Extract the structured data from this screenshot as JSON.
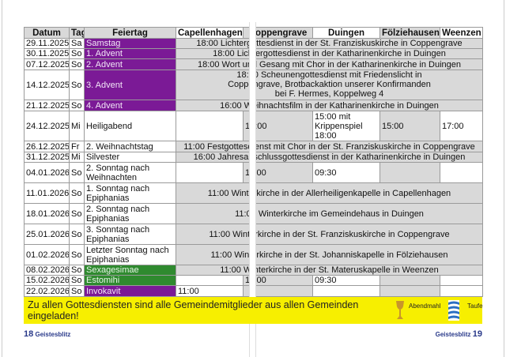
{
  "header": [
    "Datum",
    "Tag",
    "Feiertag",
    "Capellenhagen",
    "Coppengrave",
    "Duingen",
    "Fölziehausen",
    "Weenzen"
  ],
  "rows": [
    {
      "date": "29.11.2025",
      "day": "Sa",
      "feast": "Samstag",
      "feast_color": "purple",
      "merged": "18:00 Lichtergottesdienst in der St. Franziskuskirche in Coppengrave"
    },
    {
      "date": "30.11.2025",
      "day": "So",
      "feast": "1. Advent",
      "feast_color": "purple",
      "merged": "18:00 Lichtergottesdienst in der Katharinenkirche in Duingen"
    },
    {
      "date": "07.12.2025",
      "day": "So",
      "feast": "2. Advent",
      "feast_color": "purple",
      "merged": "18:00 Wort und Gesang mit Chor in der Katharinenkirche in Duingen"
    },
    {
      "date": "14.12.2025",
      "day": "So",
      "feast": "3. Advent",
      "feast_color": "purple",
      "merged": "18:00 Scheunengottesdienst mit Friedenslicht in Coppengrave, Brotbackaktion unserer Konfirmanden bei F. Hermes, Koppelweg 4"
    },
    {
      "date": "21.12.2025",
      "day": "So",
      "feast": "4. Advent",
      "feast_color": "purple",
      "merged": "16:00 Weihnachtsfilm in der Katharinenkirche in Duingen"
    },
    {
      "date": "24.12.2025",
      "day": "Mi",
      "feast": "Heiligabend",
      "cells": [
        "",
        "16:00",
        "15:00 mit Krippenspiel 18:00",
        "15:00",
        "17:00"
      ]
    },
    {
      "date": "26.12.2025",
      "day": "Fr",
      "feast": "2. Weihnachtstag",
      "merged": "11:00 Festgottesdienst mit Chor in der St. Franziskuskirche in Coppengrave"
    },
    {
      "date": "31.12.2025",
      "day": "Mi",
      "feast": "Silvester",
      "merged": "16:00 Jahresabschlussgottesdienst in der Katharinenkirche in Duingen"
    },
    {
      "date": "04.01.2026",
      "day": "So",
      "feast": "2. Sonntag nach Weihnachten",
      "cells": [
        "",
        "11:00",
        "09:30",
        "",
        ""
      ]
    },
    {
      "date": "11.01.2026",
      "day": "So",
      "feast": "1. Sonntag nach Epiphanias",
      "merged": "11:00 Winterkirche in der Allerheiligenkapelle in Capellenhagen"
    },
    {
      "date": "18.01.2026",
      "day": "So",
      "feast": "2. Sonntag nach Epiphanias",
      "merged": "11:00 Winterkirche im Gemeindehaus in Duingen"
    },
    {
      "date": "25.01.2026",
      "day": "So",
      "feast": "3. Sonntag nach Epiphanias",
      "merged": "11:00 Winterkirche in der St. Franziskuskirche in Coppengrave"
    },
    {
      "date": "01.02.2026",
      "day": "So",
      "feast": "Letzter Sonntag nach Epiphanias",
      "merged": "11:00 Winterkirche in der St. Johanniskapelle in Fölziehausen"
    },
    {
      "date": "08.02.2026",
      "day": "So",
      "feast": "Sexagesimae",
      "feast_color": "green",
      "merged": "11:00 Winterkirche in der St. Materuskapelle in Weenzen"
    },
    {
      "date": "15.02.2026",
      "day": "So",
      "feast": "Estomihi",
      "feast_color": "green",
      "cells": [
        "",
        "11:00",
        "09:30",
        "",
        ""
      ]
    },
    {
      "date": "22.02.2026",
      "day": "So",
      "feast": "Invokavit",
      "feast_color": "purple",
      "cells": [
        "11:00",
        "",
        "",
        "",
        ""
      ]
    }
  ],
  "colors": {
    "purple": "#7b1a96",
    "green": "#2f8a2f",
    "banner": "#f7ef00",
    "gray": "#d9d9d9"
  },
  "banner": {
    "text": "Zu allen Gottesdiensten sind alle Gemeindemitglieder aus allen Gemeinden eingeladen!",
    "legend": [
      {
        "icon": "chalice-icon",
        "label": "Abendmahl"
      },
      {
        "icon": "baptism-water-icon",
        "label": "Taufe"
      }
    ]
  },
  "footer": {
    "left_page": "18",
    "left_title": "Geistesblitz",
    "right_title": "Geistesblitz",
    "right_page": "19"
  }
}
